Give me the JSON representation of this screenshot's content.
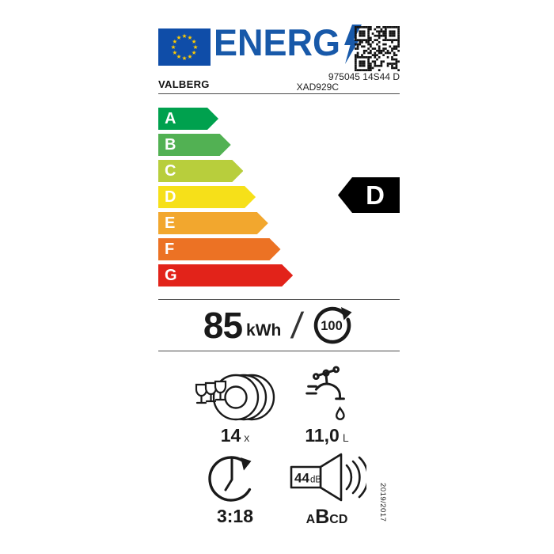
{
  "header": {
    "logo_text": "ENERG",
    "supplier": "VALBERG",
    "model_code": "975045 14S44 D",
    "model_ref": "XAD929C"
  },
  "energy_scale": {
    "classes": [
      {
        "label": "A",
        "color": "#00A14E"
      },
      {
        "label": "B",
        "color": "#52B153"
      },
      {
        "label": "C",
        "color": "#B8CE3C"
      },
      {
        "label": "D",
        "color": "#F6E019"
      },
      {
        "label": "E",
        "color": "#F2A72E"
      },
      {
        "label": "F",
        "color": "#EC7224"
      },
      {
        "label": "G",
        "color": "#E2231A"
      }
    ],
    "rated_class": "D"
  },
  "energy_consumption": {
    "value": "85",
    "unit": "kWh",
    "per": "/",
    "cycles": "100"
  },
  "metrics": {
    "capacity": {
      "value": "14",
      "unit": "x"
    },
    "water": {
      "value": "11,0",
      "unit": "L"
    },
    "duration": {
      "value": "3:18"
    },
    "noise": {
      "value": "44",
      "unit": "dB",
      "scale": [
        "A",
        "B",
        "C",
        "D"
      ],
      "rated": "B"
    }
  },
  "regulation": "2019/2017",
  "colors": {
    "eu_blue": "#0F4DA8",
    "star_yellow": "#FFCC00",
    "logo_blue": "#1859A9",
    "rated_black": "#000000",
    "divider_gray": "#4A4A4A"
  }
}
